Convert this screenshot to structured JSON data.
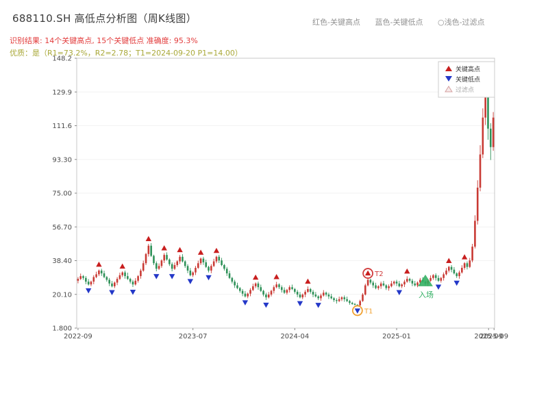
{
  "header": {
    "title": "688110.SH 高低点分析图（周K线图）",
    "legend_hints": [
      "红色-关键高点",
      "蓝色-关键低点",
      "○浅色-过滤点"
    ],
    "result_line": "识别结果: 14个关键高点, 15个关键低点  准确度: 95.3%",
    "quality_line": "优质：是（R1=73.2%，R2=2.78；T1=2024-09-20 P1=14.00）"
  },
  "chart_data": {
    "type": "candlestick",
    "title": "688110.SH 高低点分析图（周K线图）",
    "ylim": [
      1.8,
      148.2
    ],
    "y_ticks": [
      "1.800",
      "20.10",
      "38.40",
      "56.70",
      "75.00",
      "93.30",
      "111.6",
      "129.9",
      "148.2"
    ],
    "y_tick_values": [
      1.8,
      20.1,
      38.4,
      56.7,
      75.0,
      93.3,
      111.6,
      129.9,
      148.2
    ],
    "x_ticks": [
      {
        "label": "2022-09",
        "index": 0
      },
      {
        "label": "2023-07",
        "index": 44
      },
      {
        "label": "2024-04",
        "index": 83
      },
      {
        "label": "2025-01",
        "index": 122
      },
      {
        "label": "2025-09",
        "index": 157.2
      },
      {
        "label": "2025-09",
        "index": 159.3
      }
    ],
    "up_color": "#c93a34",
    "down_color": "#2e9158",
    "marker_high_color": "#c81f1f",
    "marker_low_color": "#2438c8",
    "candles": [
      [
        27.5,
        29.5,
        26.1,
        28.5
      ],
      [
        28.5,
        31.4,
        27.9,
        30.0
      ],
      [
        30.0,
        30.6,
        28.0,
        29.0
      ],
      [
        29.0,
        30.0,
        25.6,
        27.0
      ],
      [
        27.0,
        28.4,
        24.9,
        25.5
      ],
      [
        25.5,
        27.6,
        24.5,
        27.0
      ],
      [
        27.0,
        30.5,
        25.6,
        29.5
      ],
      [
        29.5,
        32.4,
        28.9,
        31.0
      ],
      [
        31.0,
        33.6,
        30.0,
        33.0
      ],
      [
        33.0,
        34.0,
        30.1,
        31.5
      ],
      [
        31.5,
        32.9,
        28.9,
        29.5
      ],
      [
        29.5,
        30.1,
        27.0,
        28.0
      ],
      [
        28.0,
        29.0,
        24.6,
        26.0
      ],
      [
        26.0,
        27.4,
        23.9,
        24.5
      ],
      [
        24.5,
        27.1,
        23.5,
        26.5
      ],
      [
        26.5,
        29.5,
        25.1,
        28.5
      ],
      [
        28.5,
        31.9,
        27.9,
        30.5
      ],
      [
        30.5,
        32.6,
        29.5,
        32.0
      ],
      [
        32.0,
        33.0,
        28.6,
        30.0
      ],
      [
        30.0,
        31.9,
        27.9,
        28.5
      ],
      [
        28.5,
        29.1,
        26.0,
        27.0
      ],
      [
        27.0,
        28.0,
        24.1,
        25.5
      ],
      [
        25.5,
        28.9,
        24.9,
        27.5
      ],
      [
        27.5,
        30.6,
        26.5,
        30.0
      ],
      [
        30.0,
        34.0,
        28.6,
        33.0
      ],
      [
        33.0,
        38.4,
        32.4,
        37.0
      ],
      [
        37.0,
        42.6,
        36.0,
        42.0
      ],
      [
        42.0,
        47.5,
        40.6,
        46.5
      ],
      [
        46.5,
        47.9,
        40.4,
        41.0
      ],
      [
        41.0,
        41.6,
        36.0,
        37.0
      ],
      [
        37.0,
        38.0,
        32.6,
        34.0
      ],
      [
        34.0,
        36.9,
        33.4,
        35.5
      ],
      [
        35.5,
        39.1,
        34.5,
        38.5
      ],
      [
        38.5,
        42.5,
        37.1,
        41.5
      ],
      [
        41.5,
        42.9,
        38.4,
        39.0
      ],
      [
        39.0,
        39.6,
        35.5,
        36.5
      ],
      [
        36.5,
        37.5,
        32.6,
        34.0
      ],
      [
        34.0,
        37.4,
        33.4,
        36.0
      ],
      [
        36.0,
        38.6,
        35.0,
        38.0
      ],
      [
        38.0,
        41.5,
        36.6,
        40.5
      ],
      [
        40.5,
        41.9,
        37.4,
        38.0
      ],
      [
        38.0,
        38.6,
        34.5,
        35.5
      ],
      [
        35.5,
        36.5,
        31.6,
        33.0
      ],
      [
        33.0,
        34.4,
        29.9,
        30.5
      ],
      [
        30.5,
        32.6,
        29.5,
        32.0
      ],
      [
        32.0,
        35.5,
        30.6,
        34.5
      ],
      [
        34.5,
        38.4,
        33.9,
        37.0
      ],
      [
        37.0,
        40.1,
        36.0,
        39.5
      ],
      [
        39.5,
        40.5,
        36.1,
        37.5
      ],
      [
        37.5,
        38.9,
        34.4,
        35.0
      ],
      [
        35.0,
        35.6,
        32.0,
        33.0
      ],
      [
        33.0,
        36.5,
        31.6,
        35.5
      ],
      [
        35.5,
        39.4,
        34.9,
        38.0
      ],
      [
        38.0,
        41.1,
        37.0,
        40.5
      ],
      [
        40.5,
        41.5,
        37.1,
        38.5
      ],
      [
        38.5,
        39.9,
        35.4,
        36.0
      ],
      [
        36.0,
        36.6,
        33.0,
        34.0
      ],
      [
        34.0,
        35.0,
        30.1,
        31.5
      ],
      [
        31.5,
        32.9,
        28.4,
        29.0
      ],
      [
        29.0,
        29.6,
        26.0,
        27.0
      ],
      [
        27.0,
        28.0,
        23.6,
        25.0
      ],
      [
        25.0,
        26.4,
        22.9,
        23.5
      ],
      [
        23.5,
        24.1,
        21.0,
        22.0
      ],
      [
        22.0,
        23.0,
        19.1,
        20.5
      ],
      [
        20.5,
        21.9,
        18.4,
        19.0
      ],
      [
        19.0,
        21.1,
        18.0,
        20.5
      ],
      [
        20.5,
        23.5,
        19.1,
        22.5
      ],
      [
        22.5,
        25.9,
        21.9,
        24.5
      ],
      [
        24.5,
        26.6,
        23.5,
        26.0
      ],
      [
        26.0,
        27.0,
        22.6,
        24.0
      ],
      [
        24.0,
        25.4,
        21.4,
        22.0
      ],
      [
        22.0,
        22.6,
        19.0,
        20.0
      ],
      [
        20.0,
        21.0,
        17.1,
        18.5
      ],
      [
        18.5,
        21.4,
        17.9,
        20.0
      ],
      [
        20.0,
        22.6,
        19.0,
        22.0
      ],
      [
        22.0,
        25.0,
        20.6,
        24.0
      ],
      [
        24.0,
        26.9,
        23.4,
        25.5
      ],
      [
        25.5,
        26.1,
        23.0,
        24.0
      ],
      [
        24.0,
        25.0,
        21.1,
        22.5
      ],
      [
        22.5,
        23.9,
        20.4,
        21.0
      ],
      [
        21.0,
        23.1,
        20.0,
        22.5
      ],
      [
        22.5,
        25.0,
        21.1,
        24.0
      ],
      [
        24.0,
        25.4,
        22.4,
        23.0
      ],
      [
        23.0,
        23.6,
        20.5,
        21.5
      ],
      [
        21.5,
        22.5,
        18.6,
        20.0
      ],
      [
        20.0,
        21.4,
        17.9,
        18.5
      ],
      [
        18.5,
        20.6,
        17.5,
        20.0
      ],
      [
        20.0,
        22.5,
        18.6,
        21.5
      ],
      [
        21.5,
        24.4,
        20.9,
        23.0
      ],
      [
        23.0,
        23.6,
        20.5,
        21.5
      ],
      [
        21.5,
        22.5,
        18.6,
        20.0
      ],
      [
        20.0,
        21.4,
        18.4,
        19.0
      ],
      [
        19.0,
        19.6,
        17.0,
        18.0
      ],
      [
        18.0,
        20.5,
        16.6,
        19.5
      ],
      [
        19.5,
        22.4,
        18.9,
        21.0
      ],
      [
        21.0,
        21.6,
        19.0,
        20.0
      ],
      [
        20.0,
        21.0,
        17.6,
        19.0
      ],
      [
        19.0,
        20.4,
        17.4,
        18.0
      ],
      [
        18.0,
        18.6,
        16.0,
        17.0
      ],
      [
        17.0,
        18.0,
        15.1,
        16.5
      ],
      [
        16.5,
        18.9,
        15.9,
        17.5
      ],
      [
        17.5,
        19.1,
        16.5,
        18.5
      ],
      [
        18.5,
        19.5,
        16.1,
        17.5
      ],
      [
        17.5,
        18.9,
        15.9,
        16.5
      ],
      [
        16.5,
        17.1,
        14.5,
        15.5
      ],
      [
        15.5,
        16.1,
        14.5,
        14.9
      ],
      [
        14.9,
        15.4,
        14.2,
        14.4
      ],
      [
        14.4,
        14.8,
        13.9,
        14.1
      ],
      [
        14.1,
        17.2,
        14.0,
        16.5
      ],
      [
        16.5,
        20.8,
        16.0,
        20.0
      ],
      [
        20.0,
        25.9,
        19.5,
        25.0
      ],
      [
        25.0,
        28.9,
        24.4,
        28.0
      ],
      [
        28.0,
        28.6,
        25.5,
        26.5
      ],
      [
        26.5,
        27.5,
        23.6,
        25.0
      ],
      [
        25.0,
        26.4,
        22.9,
        23.5
      ],
      [
        23.5,
        25.1,
        22.5,
        24.5
      ],
      [
        24.5,
        27.0,
        23.1,
        26.0
      ],
      [
        26.0,
        27.4,
        24.4,
        25.0
      ],
      [
        25.0,
        25.6,
        22.5,
        23.5
      ],
      [
        23.5,
        25.5,
        22.1,
        24.5
      ],
      [
        24.5,
        27.4,
        23.9,
        26.0
      ],
      [
        26.0,
        27.6,
        25.0,
        27.0
      ],
      [
        27.0,
        28.0,
        24.6,
        26.0
      ],
      [
        26.0,
        27.4,
        23.9,
        24.5
      ],
      [
        24.5,
        26.1,
        23.5,
        25.5
      ],
      [
        25.5,
        28.0,
        24.1,
        27.0
      ],
      [
        27.0,
        29.9,
        26.4,
        28.5
      ],
      [
        28.5,
        29.1,
        26.5,
        27.5
      ],
      [
        27.5,
        28.5,
        24.6,
        26.0
      ],
      [
        26.0,
        27.4,
        24.4,
        25.0
      ],
      [
        25.0,
        27.1,
        24.0,
        26.5
      ],
      [
        26.5,
        29.0,
        25.1,
        28.0
      ],
      [
        28.0,
        29.4,
        26.4,
        27.0
      ],
      [
        27.0,
        27.6,
        25.0,
        26.0
      ],
      [
        26.0,
        28.5,
        24.6,
        27.5
      ],
      [
        27.5,
        30.4,
        26.9,
        29.0
      ],
      [
        29.0,
        31.1,
        28.0,
        30.5
      ],
      [
        30.5,
        31.5,
        27.6,
        29.0
      ],
      [
        29.0,
        30.4,
        26.9,
        27.5
      ],
      [
        27.5,
        29.6,
        26.5,
        29.0
      ],
      [
        29.0,
        32.0,
        27.6,
        31.0
      ],
      [
        31.0,
        34.4,
        30.4,
        33.0
      ],
      [
        33.0,
        35.6,
        32.0,
        35.0
      ],
      [
        35.0,
        36.0,
        32.1,
        33.5
      ],
      [
        33.5,
        34.9,
        30.9,
        31.5
      ],
      [
        31.5,
        32.1,
        29.0,
        30.0
      ],
      [
        30.0,
        33.0,
        28.6,
        32.0
      ],
      [
        32.0,
        35.9,
        31.4,
        34.5
      ],
      [
        34.5,
        37.6,
        33.5,
        37.0
      ],
      [
        37.0,
        38.0,
        33.6,
        35.0
      ],
      [
        35.0,
        39.9,
        34.4,
        38.5
      ],
      [
        38.5,
        47.5,
        37.5,
        46.0
      ],
      [
        46.0,
        63.0,
        45.0,
        60.0
      ],
      [
        60.0,
        82.0,
        58.0,
        78.0
      ],
      [
        78.0,
        101.0,
        76.0,
        96.0
      ],
      [
        96.0,
        121.0,
        94.0,
        116.0
      ],
      [
        116.0,
        137.0,
        112.0,
        135.0
      ],
      [
        135.0,
        136.0,
        104.0,
        110.0
      ],
      [
        110.0,
        113.0,
        93.0,
        100.0
      ],
      [
        100.0,
        119.0,
        98.0,
        116.0
      ]
    ],
    "key_high_indices": [
      8,
      17,
      27,
      33,
      39,
      47,
      53,
      68,
      76,
      88,
      111,
      126,
      142,
      148
    ],
    "key_low_indices": [
      4,
      13,
      21,
      30,
      36,
      43,
      50,
      64,
      72,
      85,
      92,
      107,
      123,
      138,
      145
    ],
    "legend": {
      "items": [
        {
          "label": "关键高点",
          "type": "up",
          "color": "#c81f1f"
        },
        {
          "label": "关键低点",
          "type": "down",
          "color": "#2438c8"
        },
        {
          "label": "过滤点",
          "type": "up-outline",
          "color": "#d4a0a0",
          "fill": "#f7eaea"
        }
      ]
    },
    "annotations": {
      "t1": {
        "label": "T1",
        "index": 107,
        "color": "#f0a030"
      },
      "t2": {
        "label": "T2",
        "index": 111,
        "color": "#d03a3a"
      },
      "entry": {
        "label": "入场",
        "index": 133,
        "price": 27.5,
        "color": "#2fae60"
      }
    }
  }
}
